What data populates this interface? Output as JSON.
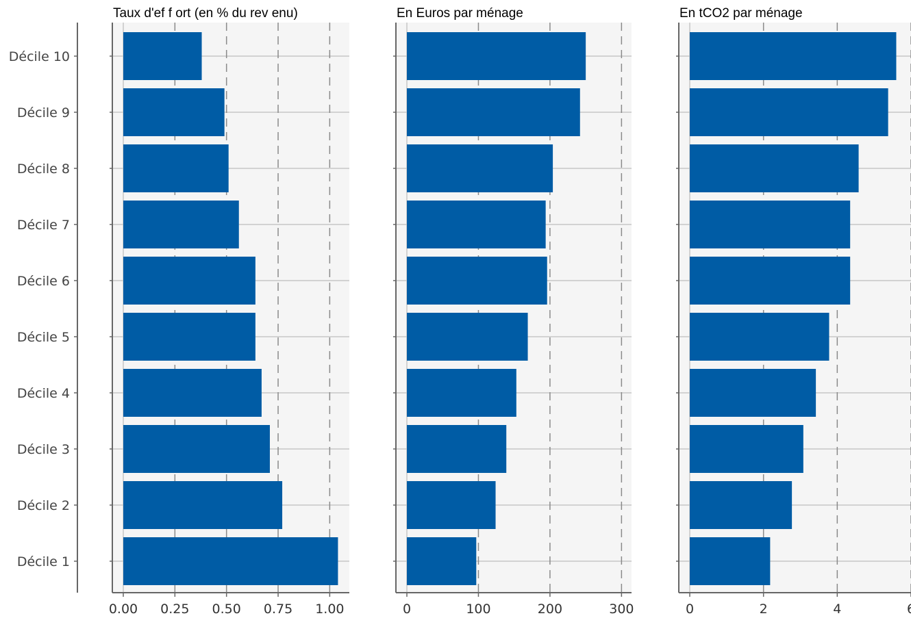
{
  "colors": {
    "bar": "#005ca5",
    "panel_bg": "#f5f5f5",
    "grid_solid": "#c6c6c6",
    "grid_dashed": "#8a8a8a",
    "axis": "#666666"
  },
  "chart_data": {
    "categories": [
      "Décile 10",
      "Décile 9",
      "Décile 8",
      "Décile 7",
      "Décile 6",
      "Décile 5",
      "Décile 4",
      "Décile 3",
      "Décile 2",
      "Décile 1"
    ],
    "panels": [
      {
        "type": "bar",
        "orientation": "horizontal",
        "title": "Taux d'ef f ort (en % du rev enu)",
        "values": [
          0.38,
          0.49,
          0.51,
          0.56,
          0.64,
          0.64,
          0.67,
          0.71,
          0.77,
          1.04
        ],
        "xlim": [
          0,
          1.095
        ],
        "ticks": [
          0.0,
          0.25,
          0.5,
          0.75,
          1.0
        ],
        "tick_labels": [
          "0.00",
          "0.25",
          "0.50",
          "0.75",
          "1.00"
        ]
      },
      {
        "type": "bar",
        "orientation": "horizontal",
        "title": "En Euros par ménage",
        "values": [
          250,
          242,
          204,
          194,
          196,
          169,
          153,
          139,
          124,
          97
        ],
        "xlim": [
          0,
          314
        ],
        "ticks": [
          0,
          100,
          200,
          300
        ],
        "tick_labels": [
          "0",
          "100",
          "200",
          "300"
        ]
      },
      {
        "type": "bar",
        "orientation": "horizontal",
        "title": "En tCO2 par ménage",
        "values": [
          5.6,
          5.38,
          4.58,
          4.35,
          4.35,
          3.78,
          3.42,
          3.08,
          2.77,
          2.18
        ],
        "xlim": [
          0,
          6.0
        ],
        "ticks": [
          0,
          2,
          4,
          6
        ],
        "tick_labels": [
          "0",
          "2",
          "4",
          "6"
        ]
      }
    ]
  }
}
